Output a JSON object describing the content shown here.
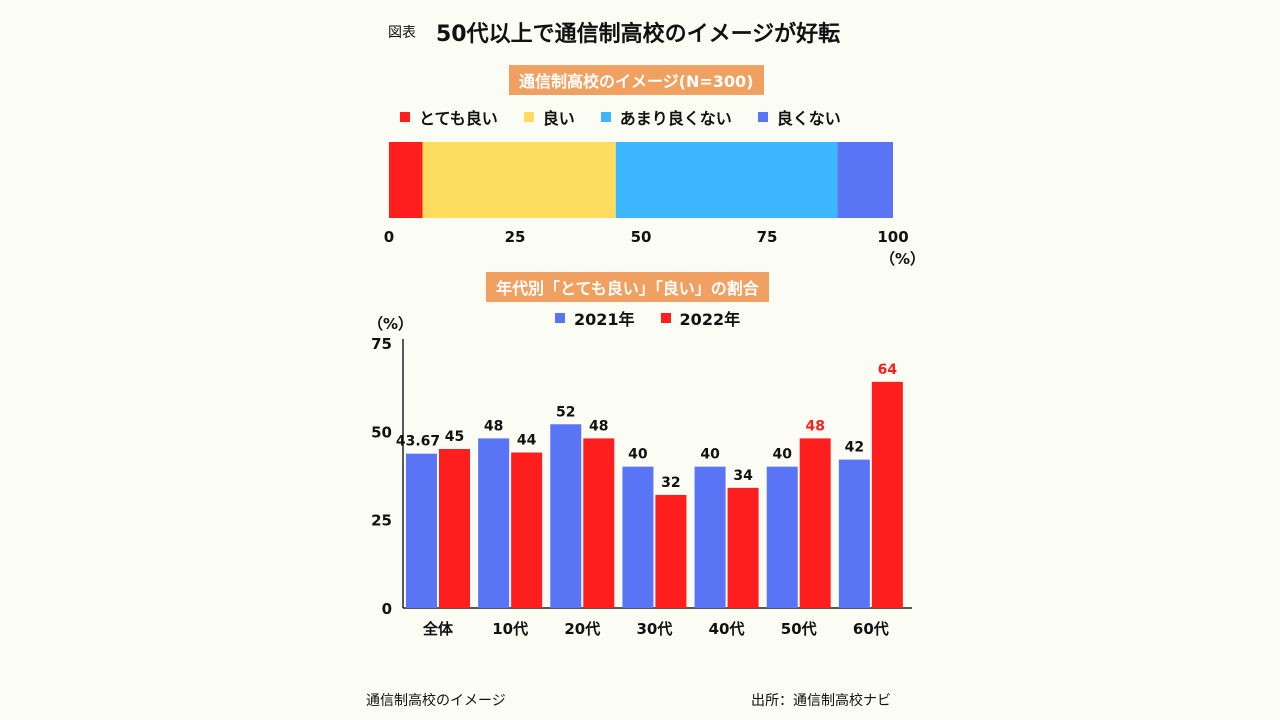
{
  "figure_label": "図表",
  "title": "50代以上で通信制高校のイメージが好転",
  "footer": {
    "left": "通信制高校のイメージ",
    "right": "出所：通信制高校ナビ"
  },
  "colors": {
    "very_good": "#ff1e1e",
    "good": "#fedd5e",
    "not_very_good": "#3cb6fe",
    "not_good": "#5a74f6",
    "y2021": "#5a74f6",
    "y2022": "#ff1e1e",
    "section_bg": "#f0a060"
  },
  "chart_data": [
    {
      "type": "bar",
      "orientation": "horizontal-stacked",
      "title": "通信制高校のイメージ(N=300)",
      "legend": [
        "とても良い",
        "良い",
        "あまり良くない",
        "良くない"
      ],
      "series": [
        {
          "name": "とても良い",
          "values": [
            6.67
          ]
        },
        {
          "name": "良い",
          "values": [
            38.33
          ]
        },
        {
          "name": "あまり良くない",
          "values": [
            44
          ]
        },
        {
          "name": "良くない",
          "values": [
            11
          ]
        }
      ],
      "xlim": [
        0,
        100
      ],
      "xticks": [
        "0",
        "25",
        "50",
        "75",
        "100"
      ],
      "unit_label": "（%）"
    },
    {
      "type": "bar",
      "title": "年代別「とても良い」「良い」の割合",
      "categories": [
        "全体",
        "10代",
        "20代",
        "30代",
        "40代",
        "50代",
        "60代"
      ],
      "series": [
        {
          "name": "2021年",
          "values": [
            43.67,
            48,
            52,
            40,
            40,
            40,
            42
          ],
          "labels": [
            "43.67",
            "48",
            "52",
            "40",
            "40",
            "40",
            "42"
          ]
        },
        {
          "name": "2022年",
          "values": [
            45,
            44,
            48,
            32,
            34,
            48,
            64
          ],
          "labels": [
            "45",
            "44",
            "48",
            "32",
            "34",
            "48",
            "64"
          ]
        }
      ],
      "highlight_labels_2022": [
        false,
        false,
        false,
        false,
        false,
        true,
        true
      ],
      "ylim": [
        0,
        75
      ],
      "yticks": [
        "0",
        "25",
        "50",
        "75"
      ],
      "ylabel": "（%）"
    }
  ]
}
